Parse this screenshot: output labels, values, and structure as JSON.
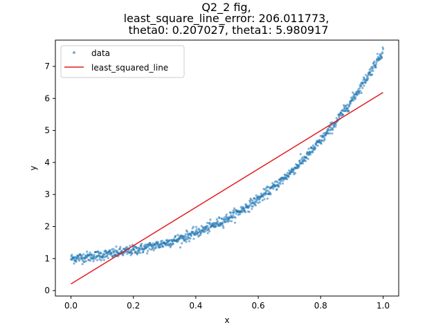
{
  "chart_data": {
    "type": "scatter",
    "title_lines": [
      "Q2_2 fig,",
      "least_square_line_error: 206.011773,",
      "theta0: 0.207027, theta1: 5.980917"
    ],
    "xlabel": "x",
    "ylabel": "y",
    "xlim": [
      -0.05,
      1.05
    ],
    "ylim": [
      -0.17,
      7.82
    ],
    "xticks": [
      0.0,
      0.2,
      0.4,
      0.6,
      0.8,
      1.0
    ],
    "xtick_labels": [
      "0.0",
      "0.2",
      "0.4",
      "0.6",
      "0.8",
      "1.0"
    ],
    "yticks": [
      0,
      1,
      2,
      3,
      4,
      5,
      6,
      7
    ],
    "ytick_labels": [
      "0",
      "1",
      "2",
      "3",
      "4",
      "5",
      "6",
      "7"
    ],
    "grid": false,
    "legend_position": "top-left",
    "series": [
      {
        "name": "data",
        "kind": "scatter",
        "color": "#1f77b4",
        "opacity": 0.55,
        "point_count": 1000,
        "trend": {
          "form": "y = 1 + 1*x + 0.5*x^2 + 5*x^3 (approx)",
          "noise_sd": 0.08
        }
      },
      {
        "name": "least_squared_line",
        "kind": "line",
        "color": "#e41a1c",
        "theta0": 0.207027,
        "theta1": 5.980917,
        "x": [
          0.0,
          1.0
        ],
        "y": [
          0.207,
          6.188
        ]
      }
    ]
  }
}
